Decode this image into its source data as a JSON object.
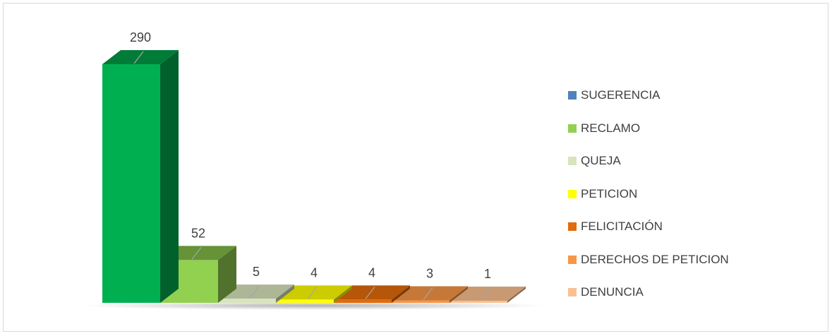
{
  "chart_data": {
    "type": "bar",
    "title": "",
    "xlabel": "",
    "ylabel": "",
    "ylim": [
      0,
      290
    ],
    "grid": false,
    "legend_position": "right",
    "categories": [
      "SUGERENCIA",
      "RECLAMO",
      "QUEJA",
      "PETICION",
      "FELICITACIÓN",
      "DERECHOS DE PETICION",
      "DENUNCIA"
    ],
    "values": [
      290,
      52,
      5,
      4,
      4,
      3,
      1
    ],
    "data_labels": [
      "290",
      "52",
      "5",
      "4",
      "4",
      "3",
      "1"
    ],
    "colors": [
      "#00b050",
      "#92d050",
      "#d8e4bc",
      "#ffff00",
      "#e26b0a",
      "#f79646",
      "#fac090"
    ],
    "bar_colors": [
      "#00b050",
      "#92d050",
      "#d8e4bc",
      "#ffff00",
      "#e26b0a",
      "#f79646",
      "#fac090"
    ],
    "legend": [
      {
        "label": "SUGERENCIA",
        "color": "#4f81bd"
      },
      {
        "label": "RECLAMO",
        "color": "#92d050"
      },
      {
        "label": "QUEJA",
        "color": "#d8e4bc"
      },
      {
        "label": "PETICION",
        "color": "#ffff00"
      },
      {
        "label": "FELICITACIÓN",
        "color": "#e26b0a"
      },
      {
        "label": "DERECHOS DE PETICION",
        "color": "#f79646"
      },
      {
        "label": "DENUNCIA",
        "color": "#fac090"
      }
    ]
  }
}
